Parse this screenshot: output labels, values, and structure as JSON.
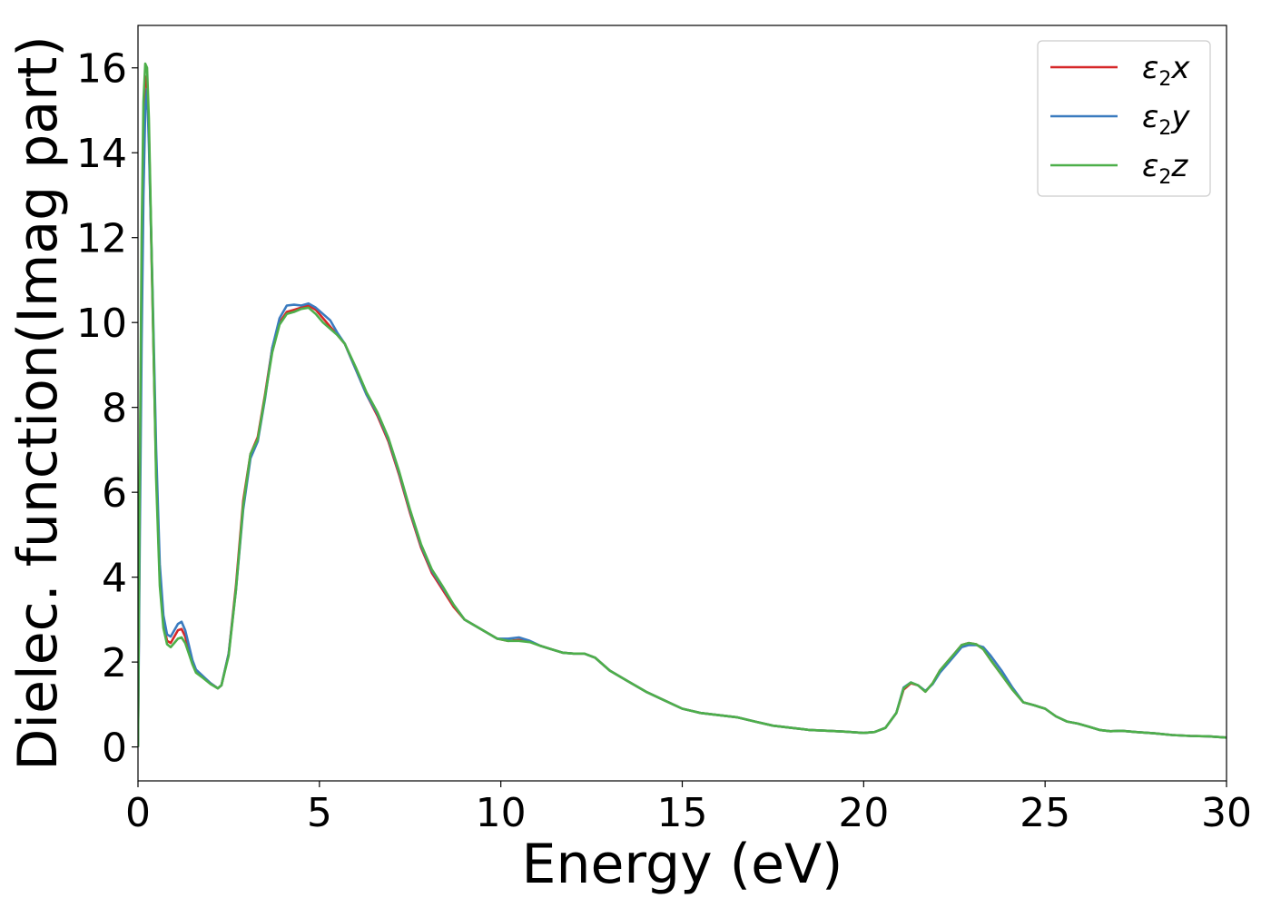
{
  "chart_data": {
    "type": "line",
    "xlabel": "Energy (eV)",
    "ylabel": "Dielec. function(Imag part)",
    "xlim": [
      0,
      30
    ],
    "ylim": [
      -0.8,
      17
    ],
    "xticks": [
      0,
      5,
      10,
      15,
      20,
      25,
      30
    ],
    "yticks": [
      0,
      2,
      4,
      6,
      8,
      10,
      12,
      14,
      16
    ],
    "legend_position": "top-right",
    "grid": false,
    "series": [
      {
        "name": "ε2x",
        "legend": {
          "base": "ε",
          "sub": "2",
          "suffix": "x"
        },
        "color": "#d62728",
        "x": [
          0,
          0.05,
          0.1,
          0.15,
          0.2,
          0.25,
          0.3,
          0.4,
          0.5,
          0.6,
          0.7,
          0.8,
          0.9,
          1.0,
          1.1,
          1.2,
          1.3,
          1.4,
          1.5,
          1.6,
          1.8,
          2.0,
          2.2,
          2.3,
          2.5,
          2.7,
          2.9,
          3.1,
          3.3,
          3.5,
          3.7,
          3.9,
          4.1,
          4.3,
          4.5,
          4.7,
          4.9,
          5.1,
          5.3,
          5.5,
          5.7,
          6.0,
          6.3,
          6.6,
          6.9,
          7.2,
          7.5,
          7.8,
          8.1,
          8.4,
          8.7,
          9.0,
          9.3,
          9.6,
          9.9,
          10.2,
          10.5,
          10.8,
          11.1,
          11.4,
          11.7,
          12.0,
          12.3,
          12.6,
          13.0,
          13.5,
          14.0,
          14.5,
          15.0,
          15.5,
          16.0,
          16.5,
          17.0,
          17.5,
          18.0,
          18.5,
          19.0,
          19.5,
          20.0,
          20.3,
          20.6,
          20.9,
          21.1,
          21.3,
          21.5,
          21.7,
          21.9,
          22.1,
          22.3,
          22.5,
          22.7,
          22.9,
          23.1,
          23.3,
          23.5,
          23.8,
          24.1,
          24.4,
          24.7,
          25.0,
          25.3,
          25.6,
          25.9,
          26.2,
          26.5,
          26.8,
          27.1,
          27.5,
          28.0,
          28.5,
          29.0,
          29.5,
          30.0
        ],
        "y": [
          0,
          6,
          11,
          14.5,
          15.8,
          15.7,
          14.5,
          10.5,
          6.5,
          4.0,
          2.9,
          2.5,
          2.45,
          2.6,
          2.75,
          2.78,
          2.6,
          2.3,
          2.0,
          1.8,
          1.65,
          1.5,
          1.38,
          1.45,
          2.2,
          3.8,
          5.8,
          6.9,
          7.3,
          8.3,
          9.4,
          10.0,
          10.25,
          10.3,
          10.35,
          10.4,
          10.3,
          10.1,
          9.9,
          9.7,
          9.5,
          8.9,
          8.3,
          7.8,
          7.2,
          6.4,
          5.5,
          4.7,
          4.1,
          3.7,
          3.3,
          3.0,
          2.85,
          2.7,
          2.55,
          2.5,
          2.52,
          2.48,
          2.38,
          2.3,
          2.22,
          2.2,
          2.2,
          2.1,
          1.8,
          1.55,
          1.3,
          1.1,
          0.9,
          0.8,
          0.75,
          0.7,
          0.6,
          0.5,
          0.45,
          0.4,
          0.38,
          0.36,
          0.33,
          0.35,
          0.45,
          0.8,
          1.35,
          1.5,
          1.45,
          1.3,
          1.5,
          1.8,
          2.0,
          2.2,
          2.4,
          2.45,
          2.42,
          2.3,
          2.05,
          1.7,
          1.35,
          1.05,
          0.98,
          0.9,
          0.72,
          0.6,
          0.55,
          0.48,
          0.4,
          0.37,
          0.38,
          0.35,
          0.32,
          0.28,
          0.26,
          0.25,
          0.22
        ]
      },
      {
        "name": "ε2y",
        "legend": {
          "base": "ε",
          "sub": "2",
          "suffix": "y"
        },
        "color": "#3a7bbf",
        "x": [
          0,
          0.05,
          0.1,
          0.15,
          0.2,
          0.25,
          0.3,
          0.4,
          0.5,
          0.6,
          0.7,
          0.8,
          0.9,
          1.0,
          1.1,
          1.2,
          1.3,
          1.4,
          1.5,
          1.6,
          1.8,
          2.0,
          2.2,
          2.3,
          2.5,
          2.7,
          2.9,
          3.1,
          3.3,
          3.5,
          3.7,
          3.9,
          4.1,
          4.3,
          4.5,
          4.7,
          4.9,
          5.1,
          5.3,
          5.5,
          5.7,
          6.0,
          6.3,
          6.6,
          6.9,
          7.2,
          7.5,
          7.8,
          8.1,
          8.4,
          8.7,
          9.0,
          9.3,
          9.6,
          9.9,
          10.2,
          10.5,
          10.8,
          11.1,
          11.4,
          11.7,
          12.0,
          12.3,
          12.6,
          13.0,
          13.5,
          14.0,
          14.5,
          15.0,
          15.5,
          16.0,
          16.5,
          17.0,
          17.5,
          18.0,
          18.5,
          19.0,
          19.5,
          20.0,
          20.3,
          20.6,
          20.9,
          21.1,
          21.3,
          21.5,
          21.7,
          21.9,
          22.1,
          22.3,
          22.5,
          22.7,
          22.9,
          23.1,
          23.3,
          23.5,
          23.8,
          24.1,
          24.4,
          24.7,
          25.0,
          25.3,
          25.6,
          25.9,
          26.2,
          26.5,
          26.8,
          27.1,
          27.5,
          28.0,
          28.5,
          29.0,
          29.5,
          30.0
        ],
        "y": [
          0,
          5,
          9.5,
          13.0,
          15.0,
          15.5,
          14.2,
          10.8,
          7.0,
          4.3,
          3.1,
          2.65,
          2.6,
          2.75,
          2.9,
          2.95,
          2.75,
          2.4,
          2.05,
          1.82,
          1.66,
          1.5,
          1.38,
          1.45,
          2.2,
          3.7,
          5.6,
          6.8,
          7.2,
          8.2,
          9.4,
          10.1,
          10.4,
          10.42,
          10.4,
          10.45,
          10.35,
          10.2,
          10.05,
          9.75,
          9.5,
          8.9,
          8.3,
          7.85,
          7.25,
          6.45,
          5.55,
          4.75,
          4.15,
          3.75,
          3.35,
          3.0,
          2.85,
          2.7,
          2.55,
          2.55,
          2.58,
          2.5,
          2.38,
          2.3,
          2.22,
          2.2,
          2.2,
          2.1,
          1.8,
          1.55,
          1.3,
          1.1,
          0.9,
          0.8,
          0.75,
          0.7,
          0.6,
          0.5,
          0.45,
          0.4,
          0.38,
          0.36,
          0.33,
          0.35,
          0.45,
          0.8,
          1.4,
          1.52,
          1.45,
          1.32,
          1.48,
          1.75,
          1.95,
          2.15,
          2.35,
          2.4,
          2.4,
          2.35,
          2.15,
          1.8,
          1.4,
          1.05,
          0.98,
          0.9,
          0.72,
          0.6,
          0.55,
          0.48,
          0.4,
          0.37,
          0.38,
          0.35,
          0.32,
          0.28,
          0.26,
          0.25,
          0.22
        ]
      },
      {
        "name": "ε2z",
        "legend": {
          "base": "ε",
          "sub": "2",
          "suffix": "z"
        },
        "color": "#4daf4a",
        "x": [
          0,
          0.05,
          0.1,
          0.15,
          0.2,
          0.25,
          0.3,
          0.4,
          0.5,
          0.6,
          0.7,
          0.8,
          0.9,
          1.0,
          1.1,
          1.2,
          1.3,
          1.4,
          1.5,
          1.6,
          1.8,
          2.0,
          2.2,
          2.3,
          2.5,
          2.7,
          2.9,
          3.1,
          3.3,
          3.5,
          3.7,
          3.9,
          4.1,
          4.3,
          4.5,
          4.7,
          4.9,
          5.1,
          5.3,
          5.5,
          5.7,
          6.0,
          6.3,
          6.6,
          6.9,
          7.2,
          7.5,
          7.8,
          8.1,
          8.4,
          8.7,
          9.0,
          9.3,
          9.6,
          9.9,
          10.2,
          10.5,
          10.8,
          11.1,
          11.4,
          11.7,
          12.0,
          12.3,
          12.6,
          13.0,
          13.5,
          14.0,
          14.5,
          15.0,
          15.5,
          16.0,
          16.5,
          17.0,
          17.5,
          18.0,
          18.5,
          19.0,
          19.5,
          20.0,
          20.3,
          20.6,
          20.9,
          21.1,
          21.3,
          21.5,
          21.7,
          21.9,
          22.1,
          22.3,
          22.5,
          22.7,
          22.9,
          23.1,
          23.3,
          23.5,
          23.8,
          24.1,
          24.4,
          24.7,
          25.0,
          25.3,
          25.6,
          25.9,
          26.2,
          26.5,
          26.8,
          27.1,
          27.5,
          28.0,
          28.5,
          29.0,
          29.5,
          30.0
        ],
        "y": [
          0,
          6.5,
          12,
          15.2,
          16.1,
          16.0,
          14.8,
          10.6,
          6.3,
          3.8,
          2.8,
          2.42,
          2.35,
          2.45,
          2.55,
          2.58,
          2.45,
          2.2,
          1.95,
          1.75,
          1.62,
          1.48,
          1.38,
          1.45,
          2.15,
          3.7,
          5.7,
          6.9,
          7.25,
          8.25,
          9.3,
          9.95,
          10.2,
          10.25,
          10.32,
          10.35,
          10.2,
          10.0,
          9.85,
          9.7,
          9.5,
          8.95,
          8.35,
          7.88,
          7.28,
          6.48,
          5.58,
          4.78,
          4.18,
          3.78,
          3.35,
          3.0,
          2.85,
          2.7,
          2.55,
          2.5,
          2.5,
          2.47,
          2.38,
          2.3,
          2.22,
          2.2,
          2.2,
          2.1,
          1.8,
          1.55,
          1.3,
          1.1,
          0.9,
          0.8,
          0.75,
          0.7,
          0.6,
          0.5,
          0.45,
          0.4,
          0.38,
          0.36,
          0.33,
          0.35,
          0.45,
          0.8,
          1.38,
          1.52,
          1.45,
          1.3,
          1.5,
          1.8,
          2.0,
          2.2,
          2.4,
          2.45,
          2.42,
          2.3,
          2.05,
          1.7,
          1.35,
          1.05,
          0.98,
          0.9,
          0.72,
          0.6,
          0.55,
          0.48,
          0.4,
          0.37,
          0.38,
          0.35,
          0.32,
          0.28,
          0.26,
          0.25,
          0.22
        ]
      }
    ]
  }
}
